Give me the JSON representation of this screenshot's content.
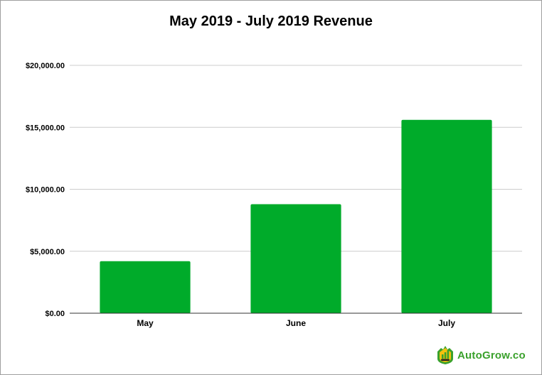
{
  "chart_data": {
    "type": "bar",
    "title": "May 2019 - July 2019 Revenue",
    "categories": [
      "May",
      "June",
      "July"
    ],
    "values": [
      4200,
      8800,
      15600
    ],
    "ylim": [
      0,
      20000
    ],
    "yticks": [
      0,
      5000,
      10000,
      15000,
      20000
    ],
    "ytick_labels": [
      "$0.00",
      "$5,000.00",
      "$10,000.00",
      "$15,000.00",
      "$20,000.00"
    ],
    "xlabel": "",
    "ylabel": "",
    "grid": true,
    "legend": "none",
    "bar_color": "#00ab2a"
  },
  "watermark": {
    "text": "AutoGrow.co",
    "icon": "autogrow-logo-icon",
    "color": "#3aa12c"
  }
}
